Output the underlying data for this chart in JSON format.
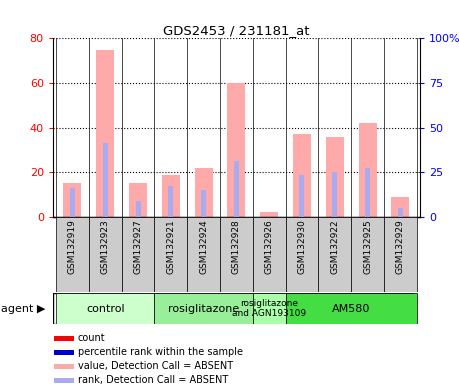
{
  "title": "GDS2453 / 231181_at",
  "samples": [
    "GSM132919",
    "GSM132923",
    "GSM132927",
    "GSM132921",
    "GSM132924",
    "GSM132928",
    "GSM132926",
    "GSM132930",
    "GSM132922",
    "GSM132925",
    "GSM132929"
  ],
  "value_absent": [
    15,
    75,
    15,
    19,
    22,
    60,
    2,
    37,
    36,
    42,
    9
  ],
  "rank_absent": [
    13,
    33,
    7,
    14,
    12,
    25,
    0,
    19,
    20,
    22,
    4
  ],
  "ylim_left": [
    0,
    80
  ],
  "ylim_right": [
    0,
    100
  ],
  "yticks_left": [
    0,
    20,
    40,
    60,
    80
  ],
  "yticks_right": [
    0,
    25,
    50,
    75,
    100
  ],
  "ytick_labels_left": [
    "0",
    "20",
    "40",
    "60",
    "80"
  ],
  "ytick_labels_right": [
    "0",
    "25",
    "50",
    "75",
    "100%"
  ],
  "groups": [
    {
      "label": "control",
      "start": 0,
      "end": 3,
      "color": "#ccffcc"
    },
    {
      "label": "rosiglitazone",
      "start": 3,
      "end": 6,
      "color": "#99ee99"
    },
    {
      "label": "rosiglitazone\nand AGN193109",
      "start": 6,
      "end": 7,
      "color": "#aaffaa"
    },
    {
      "label": "AM580",
      "start": 7,
      "end": 11,
      "color": "#44dd44"
    }
  ],
  "color_value_absent": "#ffaaaa",
  "color_rank_absent": "#aaaaee",
  "color_value_present": "#ff0000",
  "color_rank_present": "#0000cc",
  "legend_items": [
    {
      "label": "count",
      "color": "#ff0000"
    },
    {
      "label": "percentile rank within the sample",
      "color": "#0000cc"
    },
    {
      "label": "value, Detection Call = ABSENT",
      "color": "#ffaaaa"
    },
    {
      "label": "rank, Detection Call = ABSENT",
      "color": "#aaaaee"
    }
  ],
  "agent_label": "agent"
}
